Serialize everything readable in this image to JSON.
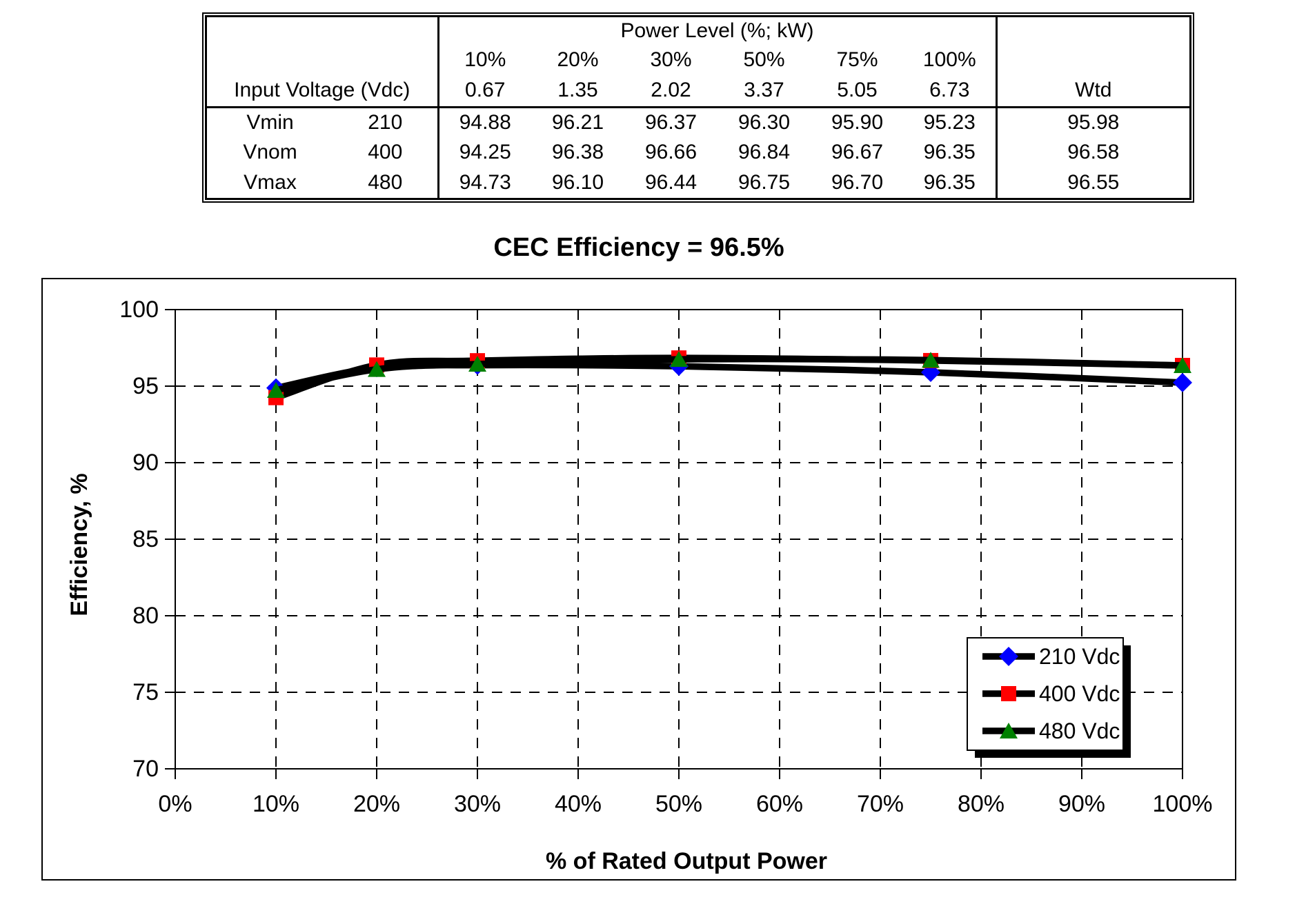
{
  "table": {
    "header_group_label": "Power Level (%; kW)",
    "row_header_label": "Input Voltage (Vdc)",
    "wtd_label": "Wtd",
    "power_levels_pct": [
      "10%",
      "20%",
      "30%",
      "50%",
      "75%",
      "100%"
    ],
    "power_levels_kw": [
      "0.67",
      "1.35",
      "2.02",
      "3.37",
      "5.05",
      "6.73"
    ],
    "rows": [
      {
        "name": "Vmin",
        "voltage": "210",
        "values": [
          "94.88",
          "96.21",
          "96.37",
          "96.30",
          "95.90",
          "95.23"
        ],
        "wtd": "95.98"
      },
      {
        "name": "Vnom",
        "voltage": "400",
        "values": [
          "94.25",
          "96.38",
          "96.66",
          "96.84",
          "96.67",
          "96.35"
        ],
        "wtd": "96.58"
      },
      {
        "name": "Vmax",
        "voltage": "480",
        "values": [
          "94.73",
          "96.10",
          "96.44",
          "96.75",
          "96.70",
          "96.35"
        ],
        "wtd": "96.55"
      }
    ]
  },
  "chart_data": {
    "type": "line",
    "title": "CEC Efficiency = 96.5%",
    "xlabel": "% of Rated Output Power",
    "ylabel": "Efficiency, %",
    "x_pct": [
      10,
      20,
      30,
      50,
      75,
      100
    ],
    "series": [
      {
        "name": "210 Vdc",
        "marker": "diamond",
        "marker_color": "#0000FF",
        "values": [
          94.88,
          96.21,
          96.37,
          96.3,
          95.9,
          95.23
        ]
      },
      {
        "name": "400 Vdc",
        "marker": "square",
        "marker_color": "#FF0000",
        "values": [
          94.25,
          96.38,
          96.66,
          96.84,
          96.67,
          96.35
        ]
      },
      {
        "name": "480 Vdc",
        "marker": "triangle",
        "marker_color": "#008000",
        "values": [
          94.73,
          96.1,
          96.44,
          96.75,
          96.7,
          96.35
        ]
      }
    ],
    "line_color": "#000000",
    "ylim": [
      70,
      100
    ],
    "xlim_pct": [
      0,
      100
    ],
    "y_ticks": [
      "70",
      "75",
      "80",
      "85",
      "90",
      "95",
      "100"
    ],
    "x_tick_labels": [
      "0%",
      "10%",
      "20%",
      "30%",
      "40%",
      "50%",
      "60%",
      "70%",
      "80%",
      "90%",
      "100%"
    ],
    "grid": "dashed",
    "legend_position": "inside-lower-right",
    "smoothed": true
  }
}
